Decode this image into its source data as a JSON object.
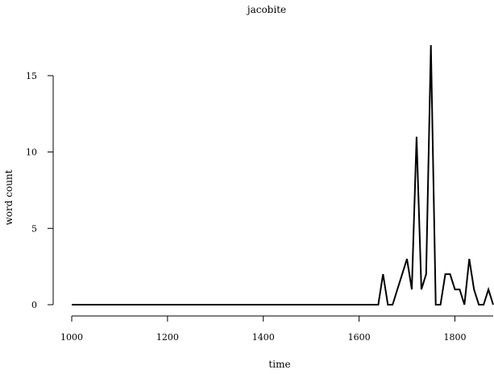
{
  "chart_data": {
    "type": "line",
    "title": "jacobite",
    "xlabel": "time",
    "ylabel": "word count",
    "xlim": [
      1000,
      1880
    ],
    "ylim": [
      0,
      17
    ],
    "x_ticks": [
      1000,
      1200,
      1400,
      1600,
      1800
    ],
    "y_ticks": [
      0,
      5,
      10,
      15
    ],
    "grid": false,
    "line_color": "#000000",
    "series": [
      {
        "x": [
          1000,
          1640,
          1650,
          1660,
          1670,
          1680,
          1690,
          1700,
          1710,
          1720,
          1730,
          1740,
          1750,
          1760,
          1770,
          1780,
          1790,
          1800,
          1810,
          1820,
          1830,
          1840,
          1850,
          1860,
          1870,
          1880
        ],
        "values": [
          0,
          0,
          2,
          0,
          0,
          1,
          2,
          3,
          1,
          11,
          1,
          2,
          17,
          0,
          0,
          2,
          2,
          1,
          1,
          0,
          3,
          1,
          0,
          0,
          1,
          0
        ]
      }
    ]
  }
}
